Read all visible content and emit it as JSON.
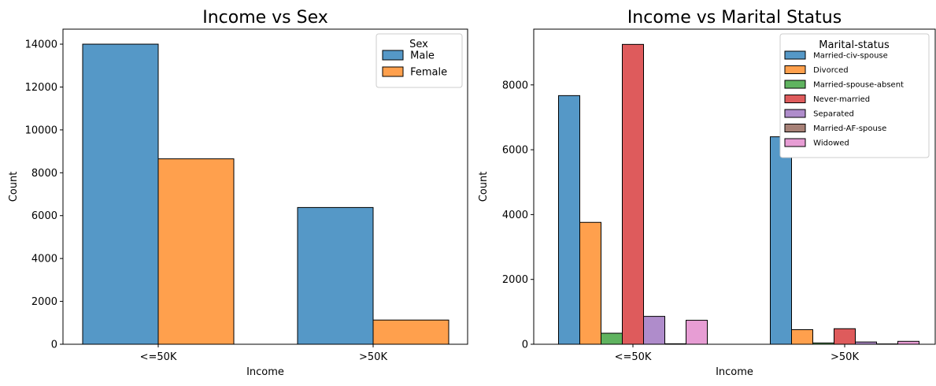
{
  "colors": {
    "blue": "#5598c7",
    "orange": "#ffa04d",
    "green": "#5fb35f",
    "red": "#de5b5c",
    "purple": "#af8ccb",
    "brown": "#a78177",
    "pink": "#e79dd4"
  },
  "chart_data": [
    {
      "type": "bar",
      "title": "Income vs Sex",
      "xlabel": "Income",
      "ylabel": "Count",
      "categories": [
        "<=50K",
        ">50K"
      ],
      "ylim": [
        0,
        14700
      ],
      "yticks": [
        0,
        2000,
        4000,
        6000,
        8000,
        10000,
        12000,
        14000
      ],
      "grid": false,
      "legend": {
        "title": "Sex",
        "placement": "top-right"
      },
      "series": [
        {
          "name": " Male",
          "color": "#5598c7",
          "values": [
            14000,
            6380
          ]
        },
        {
          "name": " Female",
          "color": "#ffa04d",
          "values": [
            8650,
            1130
          ]
        }
      ]
    },
    {
      "type": "bar",
      "title": "Income vs Marital Status",
      "xlabel": "Income",
      "ylabel": "Count",
      "categories": [
        "<=50K",
        ">50K"
      ],
      "ylim": [
        0,
        9720
      ],
      "yticks": [
        0,
        2000,
        4000,
        6000,
        8000
      ],
      "grid": false,
      "legend": {
        "title": "Marital-status",
        "placement": "top-right"
      },
      "series": [
        {
          "name": " Married-civ-spouse",
          "color": "#5598c7",
          "values": [
            7670,
            6400
          ]
        },
        {
          "name": " Divorced",
          "color": "#ffa04d",
          "values": [
            3760,
            450
          ]
        },
        {
          "name": " Married-spouse-absent",
          "color": "#5fb35f",
          "values": [
            340,
            40
          ]
        },
        {
          "name": " Never-married",
          "color": "#de5b5c",
          "values": [
            9250,
            480
          ]
        },
        {
          "name": " Separated",
          "color": "#af8ccb",
          "values": [
            860,
            70
          ]
        },
        {
          "name": " Married-AF-spouse",
          "color": "#a78177",
          "values": [
            15,
            10
          ]
        },
        {
          "name": " Widowed",
          "color": "#e79dd4",
          "values": [
            740,
            90
          ]
        }
      ]
    }
  ]
}
